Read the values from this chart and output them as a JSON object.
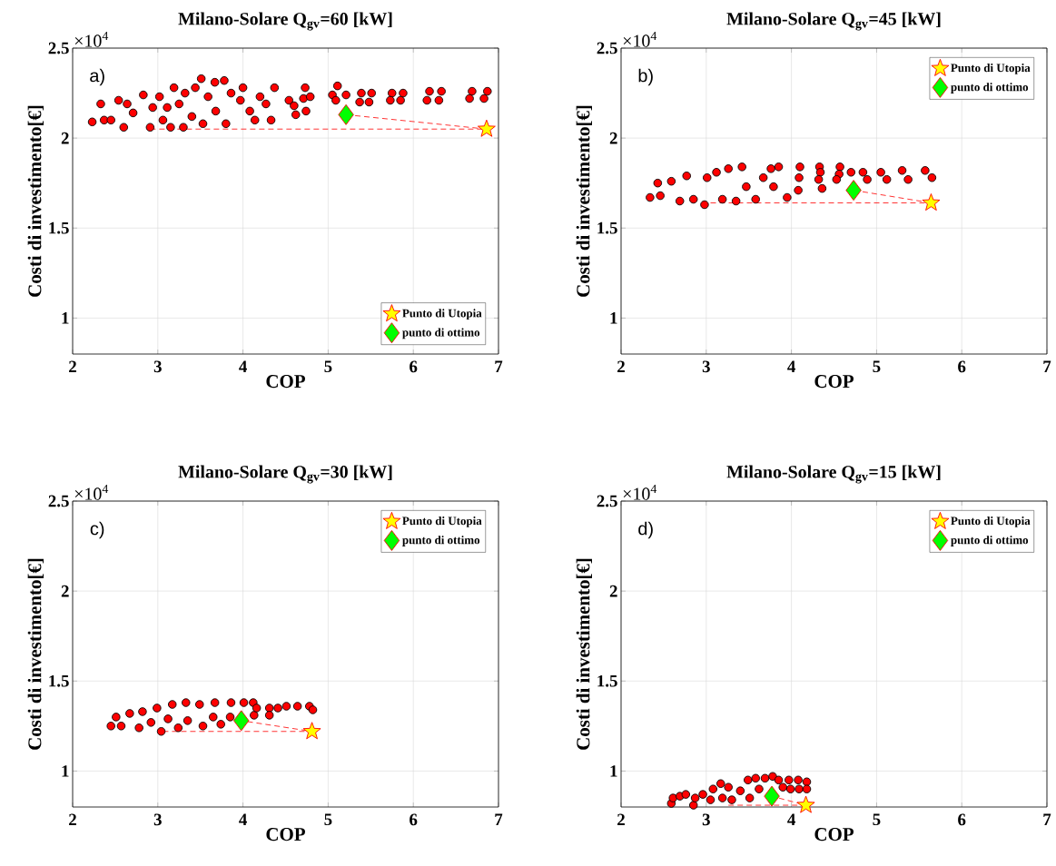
{
  "chart_data": [
    {
      "type": "scatter",
      "title": "Milano-Solare Q$_{gv}$=60 [kW]",
      "xlabel": "COP",
      "ylabel": "Costi di investimento[€]",
      "annotations": [
        "×10$^{4}$",
        "a)"
      ],
      "xlim": [
        2,
        7
      ],
      "ylim": [
        0.8,
        2.5
      ],
      "xticks": [
        2,
        3,
        4,
        5,
        6,
        7
      ],
      "yticks": [
        1,
        1.5,
        2,
        2.5
      ],
      "grid": true,
      "legend": "bottom right",
      "series": [
        {
          "color": "#ff0000",
          "marker": "circle",
          "x": [
            2.23,
            2.33,
            2.37,
            2.45,
            2.54,
            2.6,
            2.64,
            2.71,
            2.83,
            2.91,
            2.94,
            3.02,
            3.06,
            3.11,
            3.15,
            3.19,
            3.25,
            3.3,
            3.32,
            3.4,
            3.44,
            3.51,
            3.53,
            3.59,
            3.67,
            3.68,
            3.78,
            3.8,
            3.86,
            3.97,
            4.0,
            4.08,
            4.14,
            4.2,
            4.27,
            4.33,
            4.37,
            4.54,
            4.6,
            4.62,
            4.71,
            4.73,
            4.74,
            4.79,
            5.05,
            5.11,
            5.09,
            5.21,
            5.39,
            5.37,
            5.51,
            5.48,
            5.75,
            5.73,
            5.88,
            5.85,
            6.19,
            6.16,
            6.33,
            6.3,
            6.69,
            6.66,
            6.87,
            6.83
          ],
          "values": [
            2.09,
            2.19,
            2.1,
            2.1,
            2.21,
            2.06,
            2.19,
            2.14,
            2.24,
            2.06,
            2.17,
            2.23,
            2.1,
            2.17,
            2.06,
            2.28,
            2.19,
            2.06,
            2.25,
            2.12,
            2.28,
            2.33,
            2.08,
            2.23,
            2.31,
            2.15,
            2.32,
            2.08,
            2.25,
            2.21,
            2.28,
            2.15,
            2.1,
            2.23,
            2.19,
            2.1,
            2.28,
            2.21,
            2.18,
            2.13,
            2.22,
            2.28,
            2.15,
            2.23,
            2.24,
            2.29,
            2.21,
            2.24,
            2.25,
            2.2,
            2.25,
            2.2,
            2.25,
            2.21,
            2.25,
            2.21,
            2.26,
            2.21,
            2.26,
            2.21,
            2.26,
            2.22,
            2.26,
            2.22
          ]
        },
        {
          "name": "Punto di Utopia",
          "color": "#ffff00",
          "marker": "star",
          "x": [
            6.86
          ],
          "values": [
            2.05
          ]
        },
        {
          "name": "punto di ottimo",
          "color": "#00ff00",
          "marker": "diamond",
          "x": [
            5.21
          ],
          "values": [
            2.13
          ]
        },
        {
          "type": "line",
          "color": "#ff0000",
          "line_style": "dashed",
          "marker": "none",
          "x": [
            2.91,
            6.86
          ],
          "values": [
            2.05,
            2.05
          ]
        },
        {
          "type": "line",
          "color": "#ff0000",
          "line_style": "dashed",
          "marker": "none",
          "x": [
            5.21,
            6.86
          ],
          "values": [
            2.13,
            2.05
          ]
        }
      ]
    },
    {
      "type": "scatter",
      "title": "Milano-Solare Q$_{gv}$=45 [kW]",
      "xlabel": "COP",
      "ylabel": "Costi di investimento[€]",
      "annotations": [
        "×10$^{4}$",
        "b)"
      ],
      "xlim": [
        2,
        7
      ],
      "ylim": [
        0.8,
        2.5
      ],
      "xticks": [
        2,
        3,
        4,
        5,
        6,
        7
      ],
      "yticks": [
        1,
        1.5,
        2,
        2.5
      ],
      "grid": true,
      "legend": "top right",
      "series": [
        {
          "color": "#ff0000",
          "marker": "circle",
          "x": [
            2.34,
            2.43,
            2.46,
            2.59,
            2.69,
            2.77,
            2.85,
            2.98,
            3.01,
            3.12,
            3.19,
            3.26,
            3.35,
            3.42,
            3.47,
            3.58,
            3.67,
            3.76,
            3.79,
            3.85,
            3.95,
            4.08,
            4.1,
            4.09,
            4.33,
            4.34,
            4.32,
            4.36,
            4.57,
            4.56,
            4.53,
            4.7,
            4.84,
            4.89,
            5.05,
            5.12,
            5.3,
            5.37,
            5.57,
            5.65
          ],
          "values": [
            1.67,
            1.75,
            1.68,
            1.76,
            1.65,
            1.79,
            1.66,
            1.63,
            1.78,
            1.81,
            1.66,
            1.83,
            1.65,
            1.84,
            1.73,
            1.66,
            1.78,
            1.83,
            1.73,
            1.84,
            1.67,
            1.71,
            1.84,
            1.78,
            1.84,
            1.81,
            1.77,
            1.72,
            1.84,
            1.8,
            1.77,
            1.81,
            1.81,
            1.77,
            1.81,
            1.77,
            1.82,
            1.77,
            1.82,
            1.78
          ]
        },
        {
          "name": "Punto di Utopia",
          "color": "#ffff00",
          "marker": "star",
          "x": [
            5.64
          ],
          "values": [
            1.64
          ]
        },
        {
          "name": "punto di ottimo",
          "color": "#00ff00",
          "marker": "diamond",
          "x": [
            4.73
          ],
          "values": [
            1.71
          ]
        },
        {
          "type": "line",
          "color": "#ff0000",
          "line_style": "dashed",
          "marker": "none",
          "x": [
            3.05,
            5.64
          ],
          "values": [
            1.64,
            1.64
          ]
        },
        {
          "type": "line",
          "color": "#ff0000",
          "line_style": "dashed",
          "marker": "none",
          "x": [
            4.73,
            5.64
          ],
          "values": [
            1.71,
            1.64
          ]
        }
      ]
    },
    {
      "type": "scatter",
      "title": "Milano-Solare Q$_{gv}$=30 [kW]",
      "xlabel": "COP",
      "ylabel": "Costi di investimento[€]",
      "annotations": [
        "×10$^{4}$",
        "c)"
      ],
      "xlim": [
        2,
        7
      ],
      "ylim": [
        0.8,
        2.5
      ],
      "xticks": [
        2,
        3,
        4,
        5,
        6,
        7
      ],
      "yticks": [
        1,
        1.5,
        2,
        2.5
      ],
      "grid": true,
      "legend": "top right",
      "series": [
        {
          "color": "#ff0000",
          "marker": "circle",
          "x": [
            2.45,
            2.51,
            2.57,
            2.67,
            2.78,
            2.82,
            2.92,
            2.99,
            3.04,
            3.12,
            3.17,
            3.24,
            3.33,
            3.35,
            3.49,
            3.53,
            3.65,
            3.67,
            3.74,
            3.86,
            3.85,
            4.01,
            4.12,
            4.13,
            4.16,
            4.31,
            4.31,
            4.41,
            4.51,
            4.64,
            4.78,
            4.82
          ],
          "values": [
            1.25,
            1.3,
            1.25,
            1.32,
            1.24,
            1.33,
            1.27,
            1.35,
            1.22,
            1.29,
            1.37,
            1.24,
            1.38,
            1.28,
            1.37,
            1.25,
            1.3,
            1.38,
            1.26,
            1.38,
            1.3,
            1.38,
            1.38,
            1.31,
            1.35,
            1.35,
            1.31,
            1.35,
            1.36,
            1.36,
            1.36,
            1.34
          ]
        },
        {
          "type": "line",
          "color": "#ff0000",
          "line_style": "dashed",
          "marker": "none",
          "x": [
            3.06,
            4.81,
            3.98
          ],
          "values": [
            1.22,
            1.22,
            1.28
          ]
        },
        {
          "name": "Punto di Utopia",
          "color": "#ffff00",
          "marker": "star",
          "x": [
            4.81
          ],
          "values": [
            1.22
          ]
        },
        {
          "name": "punto di ottimo",
          "color": "#00ff00",
          "marker": "diamond",
          "x": [
            3.98
          ],
          "values": [
            1.28
          ]
        }
      ]
    },
    {
      "type": "scatter",
      "title": "Milano-Solare Q$_{gv}$=15 [kW]",
      "xlabel": "COP",
      "ylabel": "Costi di investimento[€]",
      "annotations": [
        "×10$^{4}$",
        "d)"
      ],
      "xlim": [
        2,
        7
      ],
      "ylim": [
        0.8,
        2.5
      ],
      "xticks": [
        2,
        3,
        4,
        5,
        6,
        7
      ],
      "yticks": [
        1,
        1.5,
        2,
        2.5
      ],
      "grid": true,
      "legend": "top right",
      "series": [
        {
          "color": "#ff0000",
          "marker": "circle",
          "x": [
            2.59,
            2.61,
            2.69,
            2.76,
            2.85,
            2.87,
            2.96,
            3.05,
            3.08,
            3.17,
            3.19,
            3.26,
            3.3,
            3.4,
            3.49,
            3.51,
            3.58,
            3.62,
            3.69,
            3.78,
            3.85,
            3.9,
            3.97,
            3.99,
            4.08,
            4.09,
            4.18,
            4.18
          ],
          "values": [
            0.82,
            0.85,
            0.86,
            0.87,
            0.81,
            0.85,
            0.87,
            0.84,
            0.9,
            0.93,
            0.85,
            0.91,
            0.84,
            0.89,
            0.95,
            0.85,
            0.96,
            0.9,
            0.96,
            0.97,
            0.95,
            0.91,
            0.95,
            0.9,
            0.95,
            0.9,
            0.94,
            0.9
          ]
        },
        {
          "type": "line",
          "color": "#ff0000",
          "line_style": "dashed",
          "marker": "none",
          "x": [
            3.26,
            4.17,
            3.77
          ],
          "values": [
            0.81,
            0.81,
            0.86
          ]
        },
        {
          "name": "Punto di Utopia",
          "color": "#ffff00",
          "marker": "star",
          "x": [
            4.17
          ],
          "values": [
            0.81
          ]
        },
        {
          "name": "punto di ottimo",
          "color": "#00ff00",
          "marker": "diamond",
          "x": [
            3.77
          ],
          "values": [
            0.86
          ]
        }
      ]
    }
  ]
}
